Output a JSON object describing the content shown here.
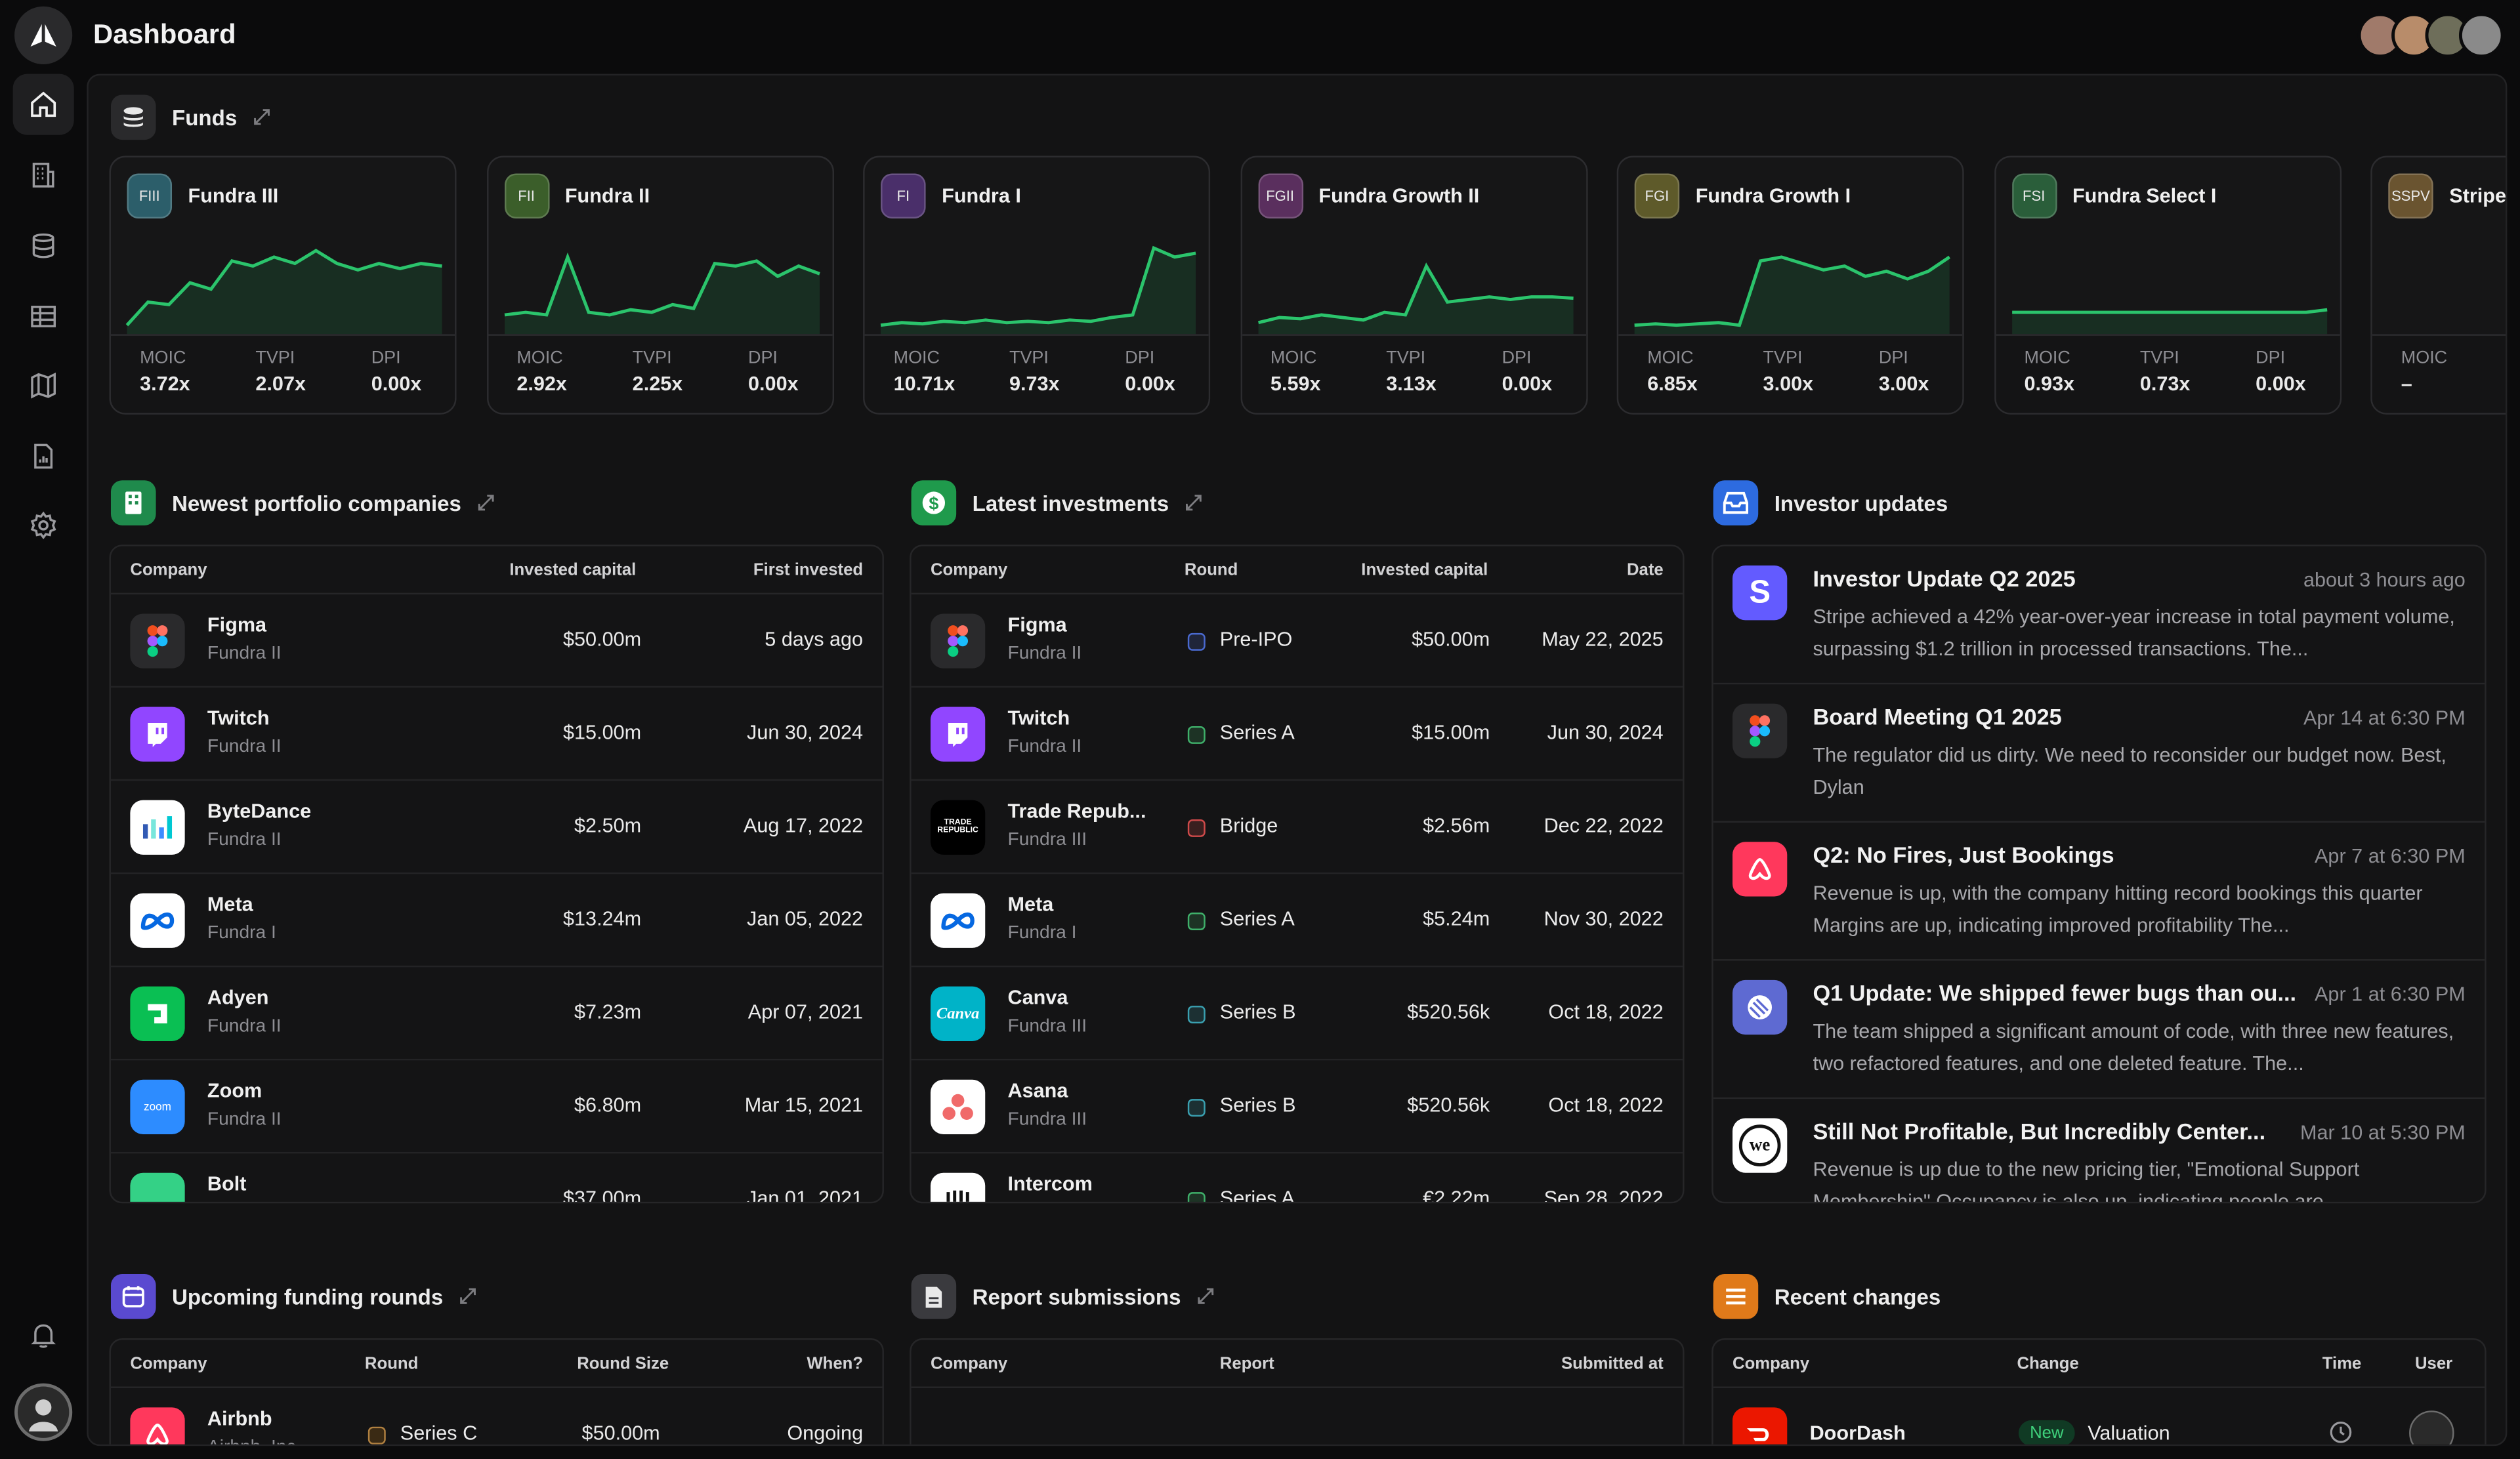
{
  "header": {
    "title": "Dashboard"
  },
  "funds": {
    "title": "Funds",
    "stat_labels": [
      "MOIC",
      "TVPI",
      "DPI"
    ],
    "items": [
      {
        "badge": "FIII",
        "name": "Fundra III",
        "badge_color": "#2c5e6a",
        "moic": "3.72x",
        "tvpi": "2.07x",
        "dpi": "0.00x",
        "spark": [
          2,
          20,
          18,
          35,
          30,
          52,
          48,
          55,
          50,
          60,
          50,
          45,
          50,
          46,
          50,
          48
        ]
      },
      {
        "badge": "FII",
        "name": "Fundra II",
        "badge_color": "#3b5e2a",
        "moic": "2.92x",
        "tvpi": "2.25x",
        "dpi": "0.00x",
        "spark": [
          10,
          12,
          10,
          55,
          12,
          10,
          14,
          12,
          18,
          15,
          50,
          48,
          52,
          40,
          48,
          42
        ]
      },
      {
        "badge": "FI",
        "name": "Fundra I",
        "badge_color": "#4a2f6a",
        "moic": "10.71x",
        "tvpi": "9.73x",
        "dpi": "0.00x",
        "spark": [
          2,
          4,
          3,
          5,
          4,
          6,
          4,
          5,
          4,
          6,
          5,
          8,
          10,
          62,
          55,
          58
        ]
      },
      {
        "badge": "FGII",
        "name": "Fundra Growth II",
        "badge_color": "#5a2f5e",
        "moic": "5.59x",
        "tvpi": "3.13x",
        "dpi": "0.00x",
        "spark": [
          4,
          8,
          7,
          10,
          8,
          6,
          12,
          10,
          48,
          20,
          22,
          24,
          22,
          24,
          24,
          23
        ]
      },
      {
        "badge": "FGI",
        "name": "Fundra Growth I",
        "badge_color": "#5e5a2a",
        "moic": "6.85x",
        "tvpi": "3.00x",
        "dpi": "3.00x",
        "spark": [
          2,
          3,
          2,
          3,
          4,
          2,
          52,
          55,
          50,
          45,
          48,
          40,
          44,
          38,
          44,
          55
        ]
      },
      {
        "badge": "FSI",
        "name": "Fundra Select I",
        "badge_color": "#2a5e3a",
        "moic": "0.93x",
        "tvpi": "0.73x",
        "dpi": "0.00x",
        "spark": [
          12,
          12,
          12,
          12,
          12,
          12,
          12,
          12,
          12,
          12,
          12,
          12,
          12,
          12,
          12,
          14
        ]
      },
      {
        "badge": "SSPV",
        "name": "Stripe SPV",
        "badge_color": "#6a5430",
        "moic": "–",
        "tvpi": "",
        "dpi": "",
        "spark": []
      }
    ]
  },
  "portfolio": {
    "title": "Newest portfolio companies",
    "headers": [
      "Company",
      "Invested capital",
      "First invested"
    ],
    "rows": [
      {
        "name": "Figma",
        "fund": "Fundra II",
        "capital": "$50.00m",
        "date": "5 days ago",
        "logo": "figma-logo"
      },
      {
        "name": "Twitch",
        "fund": "Fundra II",
        "capital": "$15.00m",
        "date": "Jun 30, 2024",
        "logo": "twitch-logo"
      },
      {
        "name": "ByteDance",
        "fund": "Fundra II",
        "capital": "$2.50m",
        "date": "Aug 17, 2022",
        "logo": "bytedance-logo"
      },
      {
        "name": "Meta",
        "fund": "Fundra I",
        "capital": "$13.24m",
        "date": "Jan 05, 2022",
        "logo": "meta-logo"
      },
      {
        "name": "Adyen",
        "fund": "Fundra II",
        "capital": "$7.23m",
        "date": "Apr 07, 2021",
        "logo": "adyen-logo"
      },
      {
        "name": "Zoom",
        "fund": "Fundra II",
        "capital": "$6.80m",
        "date": "Mar 15, 2021",
        "logo": "zoom-logo"
      },
      {
        "name": "Bolt",
        "fund": "",
        "capital": "$37.00m",
        "date": "Jan 01, 2021",
        "logo": "bolt-logo"
      }
    ]
  },
  "investments": {
    "title": "Latest investments",
    "headers": [
      "Company",
      "Round",
      "Invested capital",
      "Date"
    ],
    "rows": [
      {
        "name": "Figma",
        "fund": "Fundra II",
        "round": "Pre-IPO",
        "round_color": "#4a6ad0",
        "capital": "$50.00m",
        "date": "May 22, 2025"
      },
      {
        "name": "Twitch",
        "fund": "Fundra II",
        "round": "Series A",
        "round_color": "#3fb06a",
        "capital": "$15.00m",
        "date": "Jun 30, 2024"
      },
      {
        "name": "Trade Repub...",
        "fund": "Fundra III",
        "round": "Bridge",
        "round_color": "#d04a4a",
        "capital": "$2.56m",
        "date": "Dec 22, 2022"
      },
      {
        "name": "Meta",
        "fund": "Fundra I",
        "round": "Series A",
        "round_color": "#3fb06a",
        "capital": "$5.24m",
        "date": "Nov 30, 2022"
      },
      {
        "name": "Canva",
        "fund": "Fundra III",
        "round": "Series B",
        "round_color": "#3aa0b0",
        "capital": "$520.56k",
        "date": "Oct 18, 2022"
      },
      {
        "name": "Asana",
        "fund": "Fundra III",
        "round": "Series B",
        "round_color": "#3aa0b0",
        "capital": "$520.56k",
        "date": "Oct 18, 2022"
      },
      {
        "name": "Intercom",
        "fund": "",
        "round": "Series A",
        "round_color": "#3fb06a",
        "capital": "€2.22m",
        "date": "Sep 28, 2022"
      }
    ]
  },
  "updates": {
    "title": "Investor updates",
    "items": [
      {
        "title": "Investor Update Q2 2025",
        "when": "about 3 hours ago",
        "body": "Stripe achieved a 42% year-over-year increase in total payment volume, surpassing $1.2 trillion in processed transactions. The...",
        "logo": "stripe-logo"
      },
      {
        "title": "Board Meeting Q1 2025",
        "when": "Apr 14 at 6:30 PM",
        "body": "The regulator did us dirty. We need to reconsider our budget now. Best, Dylan",
        "logo": "figma-logo"
      },
      {
        "title": "Q2: No Fires, Just Bookings",
        "when": "Apr 7 at 6:30 PM",
        "body": "Revenue is up, with the company hitting record bookings this quarter Margins are up, indicating improved profitability The...",
        "logo": "airbnb-logo"
      },
      {
        "title": "Q1 Update: We shipped fewer bugs than ou...",
        "when": "Apr 1 at 6:30 PM",
        "body": "The team shipped a significant amount of code, with three new features, two refactored features, and one deleted feature. The...",
        "logo": "linear-logo"
      },
      {
        "title": "Still Not Profitable, But Incredibly Center...",
        "when": "Mar 10 at 5:30 PM",
        "body": "Revenue is up due to the new pricing tier, \"Emotional Support Membership\" Occupancy is also up, indicating people are...",
        "logo": "wework-logo"
      }
    ]
  },
  "funding": {
    "title": "Upcoming funding rounds",
    "headers": [
      "Company",
      "Round",
      "Round Size",
      "When?"
    ],
    "rows": [
      {
        "name": "Airbnb",
        "sub": "Airbnb, Inc.",
        "round": "Series C",
        "size": "$50.00m",
        "when": "Ongoing"
      }
    ]
  },
  "reports": {
    "title": "Report submissions",
    "headers": [
      "Company",
      "Report",
      "Submitted at"
    ]
  },
  "changes": {
    "title": "Recent changes",
    "headers": [
      "Company",
      "Change",
      "Time",
      "User"
    ],
    "rows": [
      {
        "name": "DoorDash",
        "tag": "New",
        "change": "Valuation"
      }
    ]
  },
  "colors": {
    "accent_green": "#2bc46c",
    "bg": "#0b0b0c",
    "panel": "#141415"
  }
}
